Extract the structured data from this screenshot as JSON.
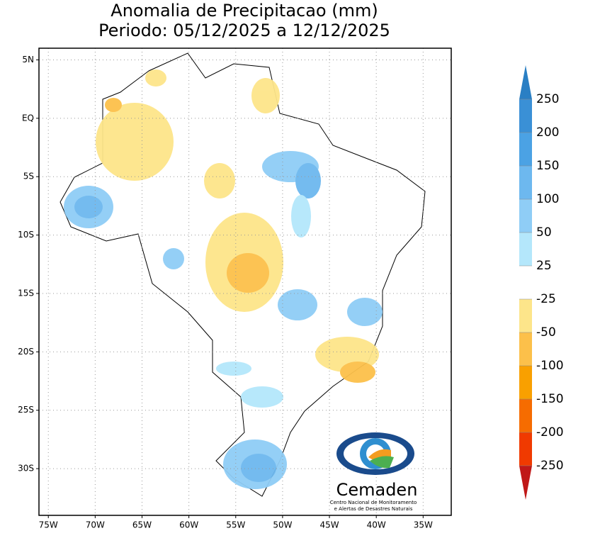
{
  "map": {
    "title": "Anomalia de Precipitacao (mm)",
    "subtitle": "Periodo: 05/12/2025 a 12/12/2025",
    "xlim": [
      -76,
      -32
    ],
    "ylim": [
      -34,
      6
    ],
    "lat_ticks": [
      {
        "value": 5,
        "label": "5N"
      },
      {
        "value": 0,
        "label": "EQ"
      },
      {
        "value": -5,
        "label": "5S"
      },
      {
        "value": -10,
        "label": "10S"
      },
      {
        "value": -15,
        "label": "15S"
      },
      {
        "value": -20,
        "label": "20S"
      },
      {
        "value": -25,
        "label": "25S"
      },
      {
        "value": -30,
        "label": "30S"
      }
    ],
    "lon_ticks": [
      {
        "value": -75,
        "label": "75W"
      },
      {
        "value": -70,
        "label": "70W"
      },
      {
        "value": -65,
        "label": "65W"
      },
      {
        "value": -60,
        "label": "60W"
      },
      {
        "value": -55,
        "label": "55W"
      },
      {
        "value": -50,
        "label": "50W"
      },
      {
        "value": -45,
        "label": "45W"
      },
      {
        "value": -40,
        "label": "40W"
      },
      {
        "value": -35,
        "label": "35W"
      }
    ],
    "grid": true
  },
  "colorbar": {
    "levels": [
      250,
      200,
      150,
      100,
      50,
      25,
      -25,
      -50,
      -100,
      -150,
      -200,
      -250
    ],
    "colors": [
      "#2a7fc4",
      "#3a90d6",
      "#4ba2e4",
      "#6db8ef",
      "#8fcdf6",
      "#b4e7fb",
      "#ffffff",
      "#fde58a",
      "#fcc04a",
      "#f9a000",
      "#f66c00",
      "#f03a00",
      "#c01818"
    ]
  },
  "logo": {
    "name": "Cemaden",
    "line1": "Centro Nacional de Monitoramento",
    "line2": "e Alertas de Desastres Naturais"
  }
}
